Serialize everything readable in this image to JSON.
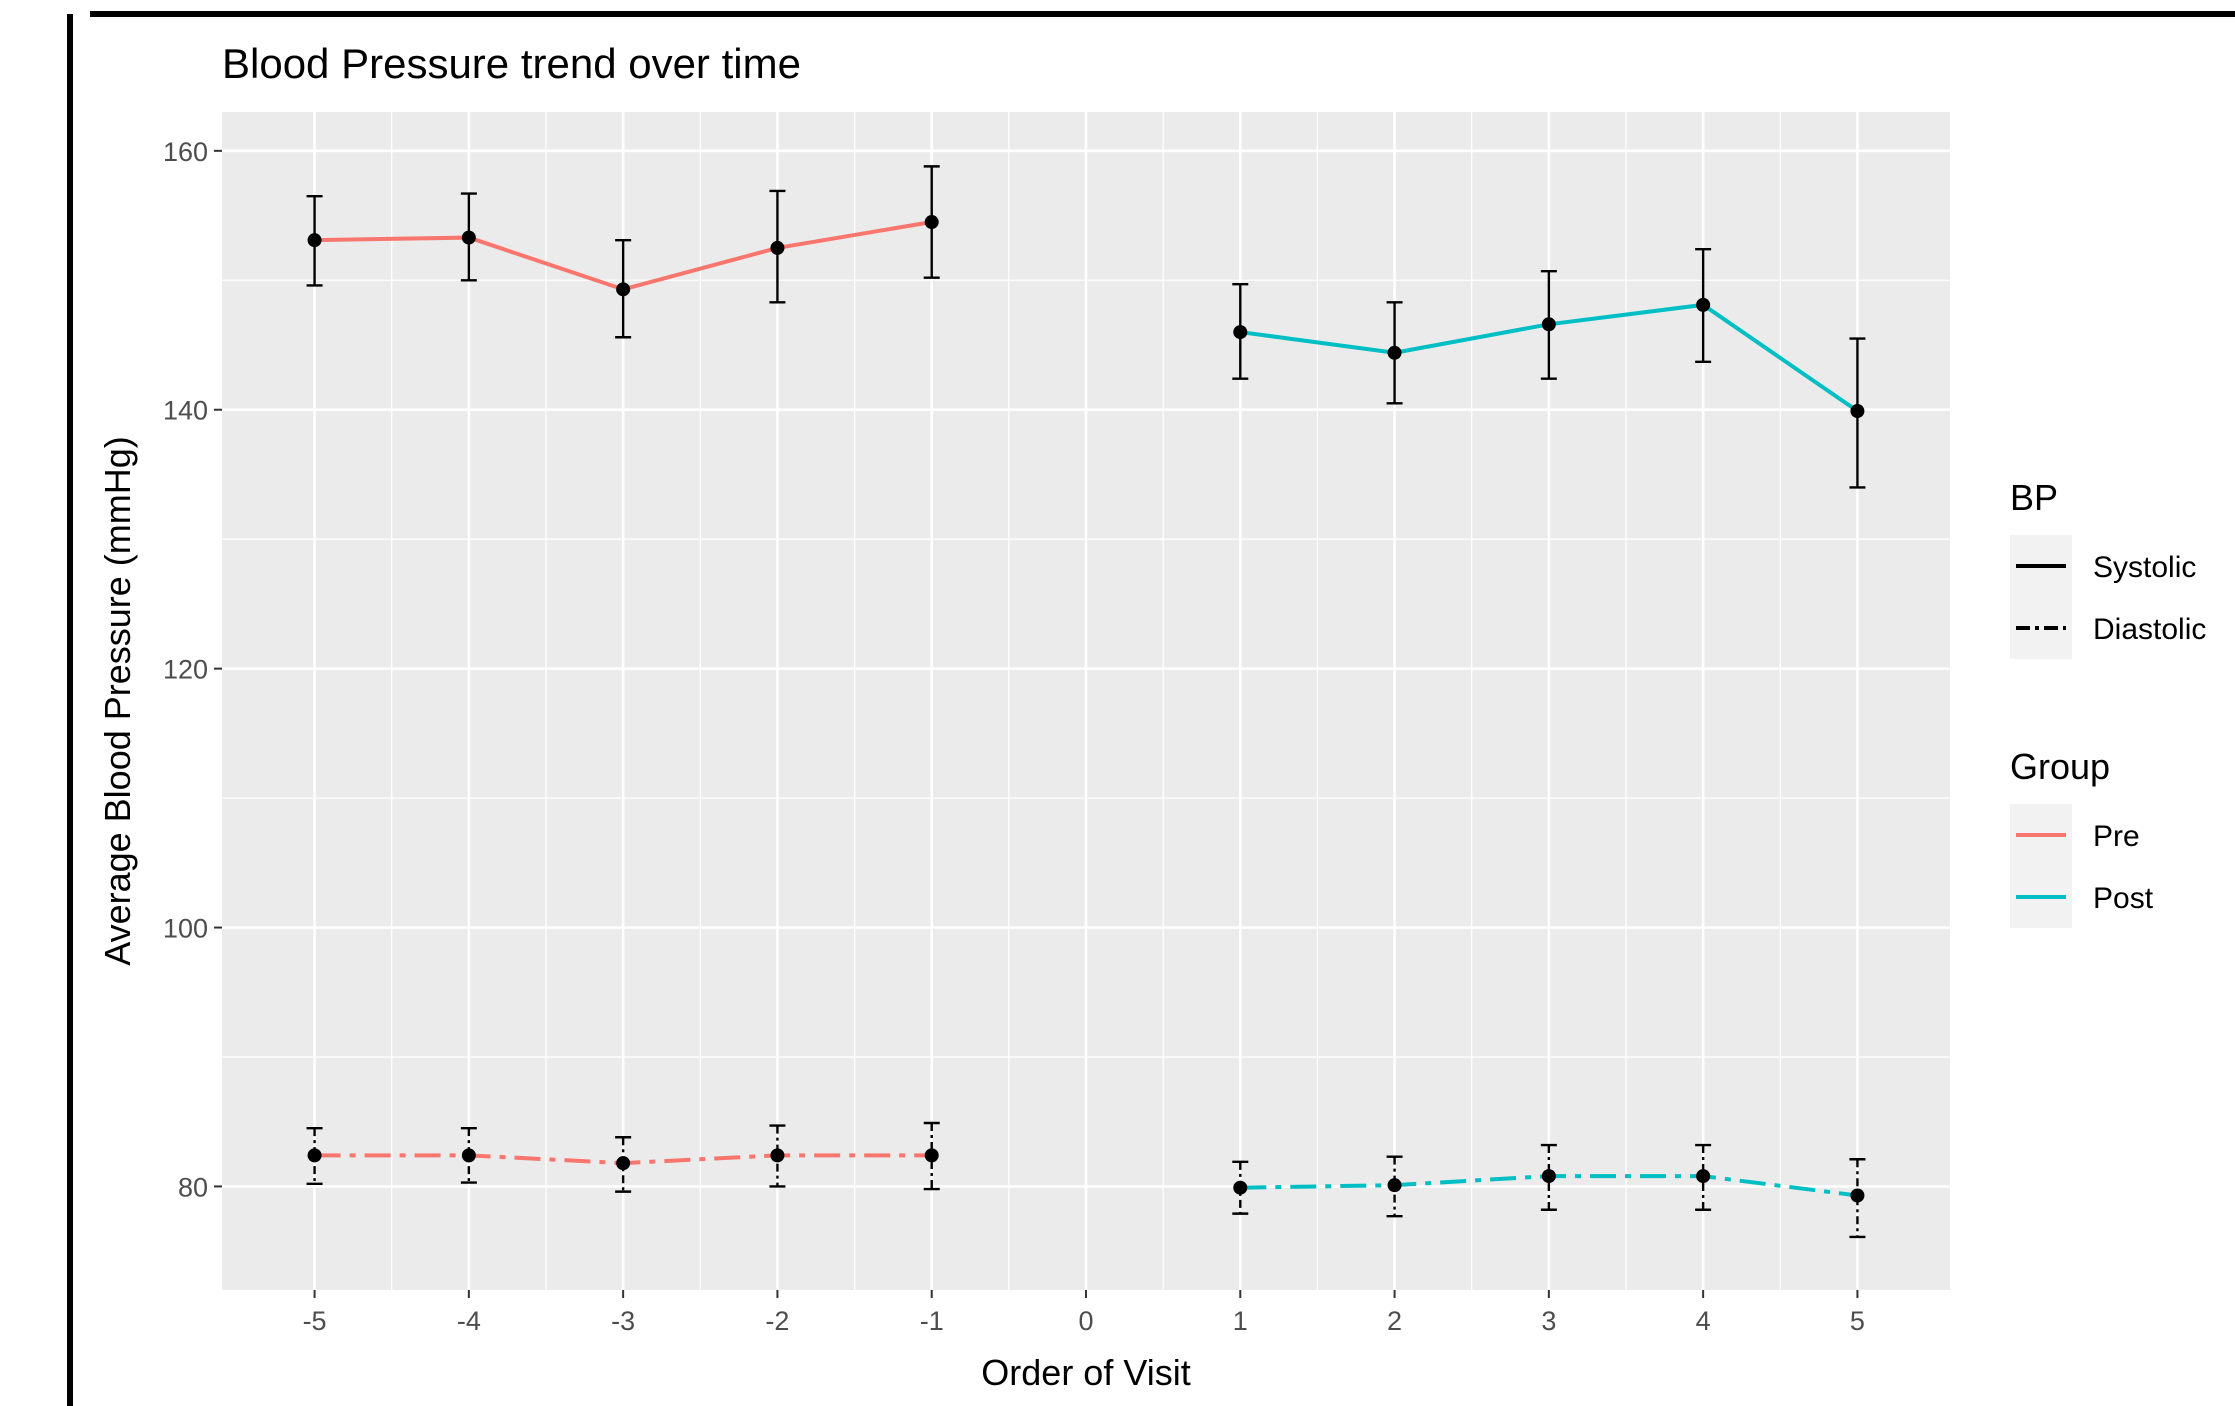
{
  "chart_data": {
    "type": "line",
    "title": "Blood Pressure trend over time",
    "xlabel": "Order of Visit",
    "ylabel": "Average Blood Pressure (mmHg)",
    "xlim": [
      -5.6,
      5.6
    ],
    "ylim": [
      72,
      163
    ],
    "x_ticks": [
      -5,
      -4,
      -3,
      -2,
      -1,
      0,
      1,
      2,
      3,
      4,
      5
    ],
    "x_tick_labels": [
      "-5",
      "-4",
      "-3",
      "-2",
      "-1",
      "0",
      "1",
      "2",
      "3",
      "4",
      "5"
    ],
    "y_ticks": [
      80,
      100,
      120,
      140,
      160
    ],
    "y_tick_labels": [
      "80",
      "100",
      "120",
      "140",
      "160"
    ],
    "y_minor_ticks": [
      90,
      110,
      130,
      150
    ],
    "grid": true,
    "legend_position": "right",
    "colors": {
      "pre": "#F8766D",
      "post": "#00BFC4",
      "panel": "#EBEBEB",
      "grid": "#FFFFFF",
      "legend_key": "#F2F2F2",
      "points": "#000000"
    },
    "legends": [
      {
        "title": "BP",
        "entries": [
          {
            "label": "Systolic",
            "linetype": "solid",
            "color": "#000000"
          },
          {
            "label": "Diastolic",
            "linetype": "longdash-dot",
            "color": "#000000"
          }
        ]
      },
      {
        "title": "Group",
        "entries": [
          {
            "label": "Pre",
            "linetype": "solid",
            "color": "#F8766D"
          },
          {
            "label": "Post",
            "linetype": "solid",
            "color": "#00BFC4"
          }
        ]
      }
    ],
    "series": [
      {
        "group": "Pre",
        "bp": "Systolic",
        "x": [
          -5,
          -4,
          -3,
          -2,
          -1
        ],
        "y": [
          153.1,
          153.3,
          149.3,
          152.5,
          154.5
        ],
        "ymin": [
          149.6,
          150.0,
          145.6,
          148.3,
          150.2
        ],
        "ymax": [
          156.5,
          156.7,
          153.1,
          156.9,
          158.8
        ]
      },
      {
        "group": "Pre",
        "bp": "Diastolic",
        "x": [
          -5,
          -4,
          -3,
          -2,
          -1
        ],
        "y": [
          82.4,
          82.4,
          81.8,
          82.4,
          82.4
        ],
        "ymin": [
          80.2,
          80.3,
          79.6,
          80.0,
          79.8
        ],
        "ymax": [
          84.5,
          84.5,
          83.8,
          84.7,
          84.9
        ]
      },
      {
        "group": "Post",
        "bp": "Systolic",
        "x": [
          1,
          2,
          3,
          4,
          5
        ],
        "y": [
          146.0,
          144.4,
          146.6,
          148.1,
          139.9
        ],
        "ymin": [
          142.4,
          140.5,
          142.4,
          143.7,
          134.0
        ],
        "ymax": [
          149.7,
          148.3,
          150.7,
          152.4,
          145.5
        ]
      },
      {
        "group": "Post",
        "bp": "Diastolic",
        "x": [
          1,
          2,
          3,
          4,
          5
        ],
        "y": [
          79.9,
          80.1,
          80.8,
          80.8,
          79.3
        ],
        "ymin": [
          77.9,
          77.7,
          78.2,
          78.2,
          76.1
        ],
        "ymax": [
          81.9,
          82.3,
          83.2,
          83.2,
          82.1
        ]
      }
    ]
  }
}
